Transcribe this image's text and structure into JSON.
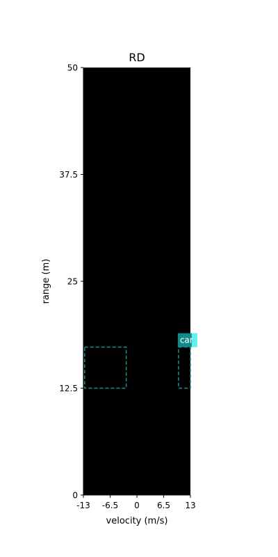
{
  "chart_data": {
    "type": "heatmap",
    "title": "RD",
    "xlabel": "velocity (m/s)",
    "ylabel": "range (m)",
    "xlim": [
      -13,
      13
    ],
    "ylim": [
      0,
      50
    ],
    "x_ticks": [
      -13,
      -6.5,
      0,
      6.5,
      13
    ],
    "x_tick_labels": [
      "-13",
      "-6.5",
      "0",
      "6.5",
      "13"
    ],
    "y_ticks": [
      0,
      12.5,
      25,
      37.5,
      50
    ],
    "y_tick_labels": [
      "0",
      "12.5",
      "25",
      "37.5",
      "50"
    ],
    "background_value": 0,
    "colormap_background": "#000000",
    "grid": false,
    "detections": [
      {
        "label": "",
        "x_range": [
          -12.7,
          -2.6
        ],
        "y_range": [
          12.5,
          17.3
        ],
        "edge_color": "#1a8f8f"
      },
      {
        "label": "car",
        "x_range": [
          10.1,
          13
        ],
        "y_range": [
          12.5,
          17.3
        ],
        "edge_color": "#1a8f8f",
        "label_bg": "#128a8a",
        "label_fg": "#ffffff"
      }
    ]
  },
  "colors": {
    "label_tail": "#5ff0f0"
  }
}
